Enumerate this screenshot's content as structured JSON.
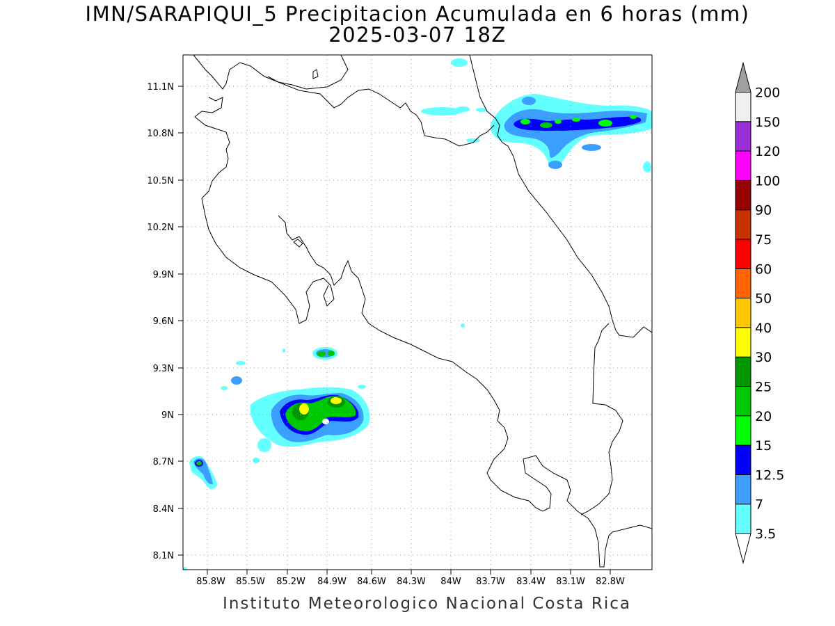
{
  "title": {
    "line1": "IMN/SARAPIQUI_5 Precipitacion Acumulada en 6 horas (mm)",
    "line2": "2025-03-07 18Z"
  },
  "credit": "Instituto Meteorologico Nacional Costa Rica",
  "map": {
    "lon_range": [
      -86.0,
      -82.6
    ],
    "lat_range": [
      8.0,
      11.25
    ],
    "lat_ticks": [
      "11.1N",
      "10.8N",
      "10.5N",
      "10.2N",
      "9.9N",
      "9.6N",
      "9.3N",
      "9N",
      "8.7N",
      "8.4N",
      "8.1N"
    ],
    "lon_ticks": [
      "85.8W",
      "85.5W",
      "85.2W",
      "84.9W",
      "84.6W",
      "84.3W",
      "84W",
      "83.7W",
      "83.4W",
      "83.1W",
      "82.8W"
    ],
    "grid": "dotted"
  },
  "colorbar": {
    "levels": [
      "3.5",
      "7",
      "12.5",
      "15",
      "20",
      "25",
      "30",
      "40",
      "50",
      "60",
      "75",
      "90",
      "100",
      "120",
      "150",
      "200"
    ],
    "colors": [
      "#64ffff",
      "#3c9eff",
      "#0000ff",
      "#00ff00",
      "#00c800",
      "#009600",
      "#ffff00",
      "#ffc800",
      "#ff6400",
      "#ff0000",
      "#c83200",
      "#960000",
      "#ff00ff",
      "#9b30d8",
      "#f0f0f0",
      "#a0a0a0"
    ]
  }
}
